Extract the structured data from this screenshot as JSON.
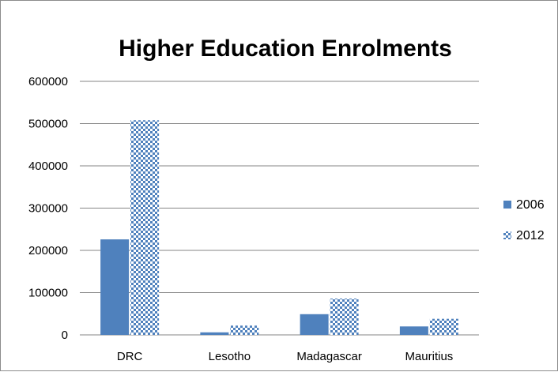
{
  "chart_data": {
    "type": "bar",
    "title": "Higher Education Enrolments",
    "categories": [
      "DRC",
      "Lesotho",
      "Madagascar",
      "Mauritius"
    ],
    "series": [
      {
        "name": "2006",
        "values": [
          226000,
          6000,
          49000,
          20000
        ],
        "color": "#4f81bd",
        "pattern": "solid"
      },
      {
        "name": "2012",
        "values": [
          508000,
          22000,
          86000,
          38000
        ],
        "color": "#4f81bd",
        "pattern": "checker"
      }
    ],
    "y_ticks": [
      "0",
      "100000",
      "200000",
      "300000",
      "400000",
      "500000",
      "600000"
    ],
    "ylim": [
      0,
      600000
    ],
    "grid": true,
    "legend_position": "right"
  }
}
